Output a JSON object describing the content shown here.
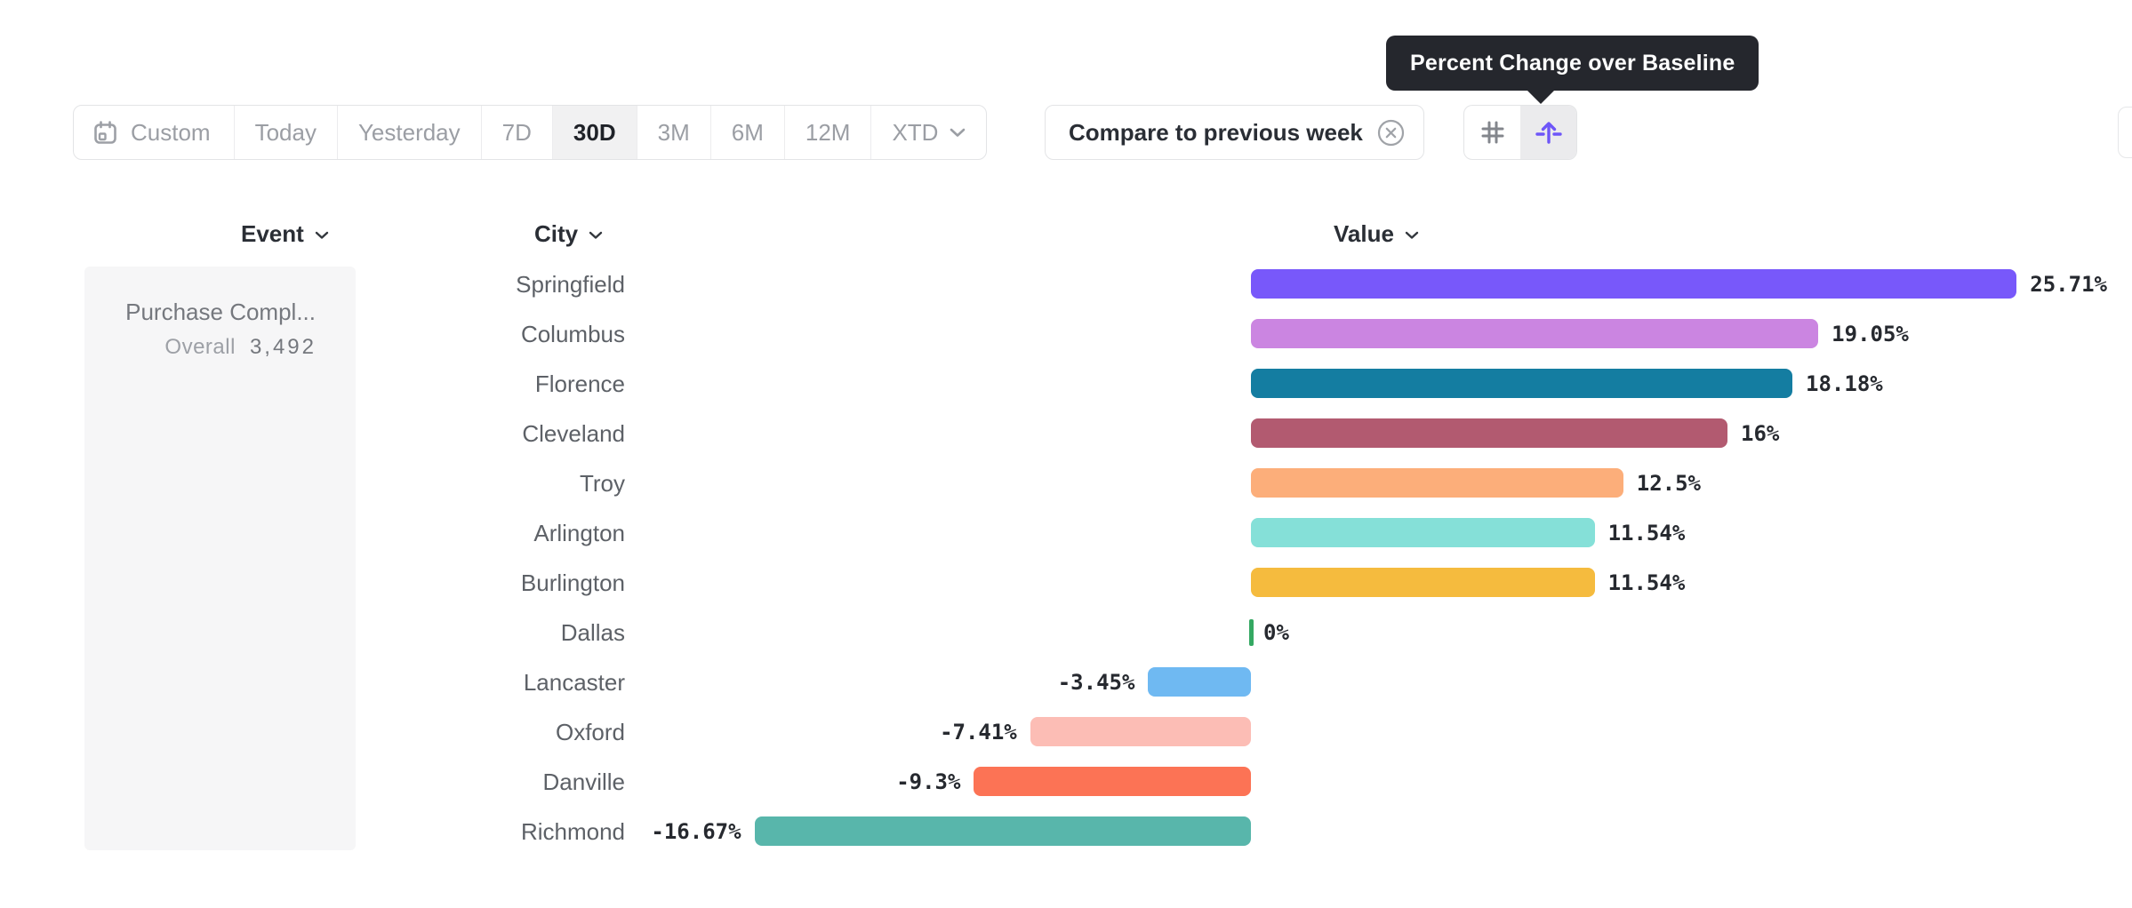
{
  "tooltip": {
    "text": "Percent Change over Baseline",
    "bg_color": "#25272d"
  },
  "toolbar": {
    "date_ranges": [
      {
        "label": "Custom",
        "icon": "calendar-icon",
        "active": false
      },
      {
        "label": "Today",
        "active": false
      },
      {
        "label": "Yesterday",
        "active": false
      },
      {
        "label": "7D",
        "active": false
      },
      {
        "label": "30D",
        "active": true
      },
      {
        "label": "3M",
        "active": false
      },
      {
        "label": "6M",
        "active": false
      },
      {
        "label": "12M",
        "active": false
      },
      {
        "label": "XTD",
        "icon": "chevron-down-icon",
        "active": false
      }
    ],
    "compare": {
      "label": "Compare to previous week",
      "icon": "close-circle-icon"
    },
    "view_toggle": {
      "options": [
        {
          "icon": "grid-icon",
          "selected": false
        },
        {
          "icon": "baseline-arrow-icon",
          "selected": true,
          "accent_color": "#6e56f8"
        }
      ]
    }
  },
  "table": {
    "columns": [
      {
        "label": "Event"
      },
      {
        "label": "City"
      },
      {
        "label": "Value"
      }
    ],
    "event_cell": {
      "name": "Purchase Compl...",
      "overall_label": "Overall",
      "overall_value": "3,492"
    },
    "rows": [
      {
        "city": "Springfield",
        "value": 25.71,
        "value_label": "25.71%",
        "color": "#7858fa"
      },
      {
        "city": "Columbus",
        "value": 19.05,
        "value_label": "19.05%",
        "color": "#cb85e1"
      },
      {
        "city": "Florence",
        "value": 18.18,
        "value_label": "18.18%",
        "color": "#147da1"
      },
      {
        "city": "Cleveland",
        "value": 16,
        "value_label": "16%",
        "color": "#b25a70"
      },
      {
        "city": "Troy",
        "value": 12.5,
        "value_label": "12.5%",
        "color": "#fcae7a"
      },
      {
        "city": "Arlington",
        "value": 11.54,
        "value_label": "11.54%",
        "color": "#85e0d8"
      },
      {
        "city": "Burlington",
        "value": 11.54,
        "value_label": "11.54%",
        "color": "#f5bb3e"
      },
      {
        "city": "Dallas",
        "value": 0,
        "value_label": "0%",
        "color": "#34a862"
      },
      {
        "city": "Lancaster",
        "value": -3.45,
        "value_label": "-3.45%",
        "color": "#6fb9f2"
      },
      {
        "city": "Oxford",
        "value": -7.41,
        "value_label": "-7.41%",
        "color": "#fcbdb5"
      },
      {
        "city": "Danville",
        "value": -9.3,
        "value_label": "-9.3%",
        "color": "#fc7355"
      },
      {
        "city": "Richmond",
        "value": -16.67,
        "value_label": "-16.67%",
        "color": "#58b6ab"
      }
    ]
  },
  "chart_data": {
    "type": "bar",
    "orientation": "horizontal",
    "title": "Percent Change over Baseline",
    "categories": [
      "Springfield",
      "Columbus",
      "Florence",
      "Cleveland",
      "Troy",
      "Arlington",
      "Burlington",
      "Dallas",
      "Lancaster",
      "Oxford",
      "Danville",
      "Richmond"
    ],
    "values": [
      25.71,
      19.05,
      18.18,
      16,
      12.5,
      11.54,
      11.54,
      0,
      -3.45,
      -7.41,
      -9.3,
      -16.67
    ],
    "unit": "%",
    "baseline": 0,
    "grid": false,
    "colors": [
      "#7858fa",
      "#cb85e1",
      "#147da1",
      "#b25a70",
      "#fcae7a",
      "#85e0d8",
      "#f5bb3e",
      "#34a862",
      "#6fb9f2",
      "#fcbdb5",
      "#fc7355",
      "#58b6ab"
    ]
  }
}
